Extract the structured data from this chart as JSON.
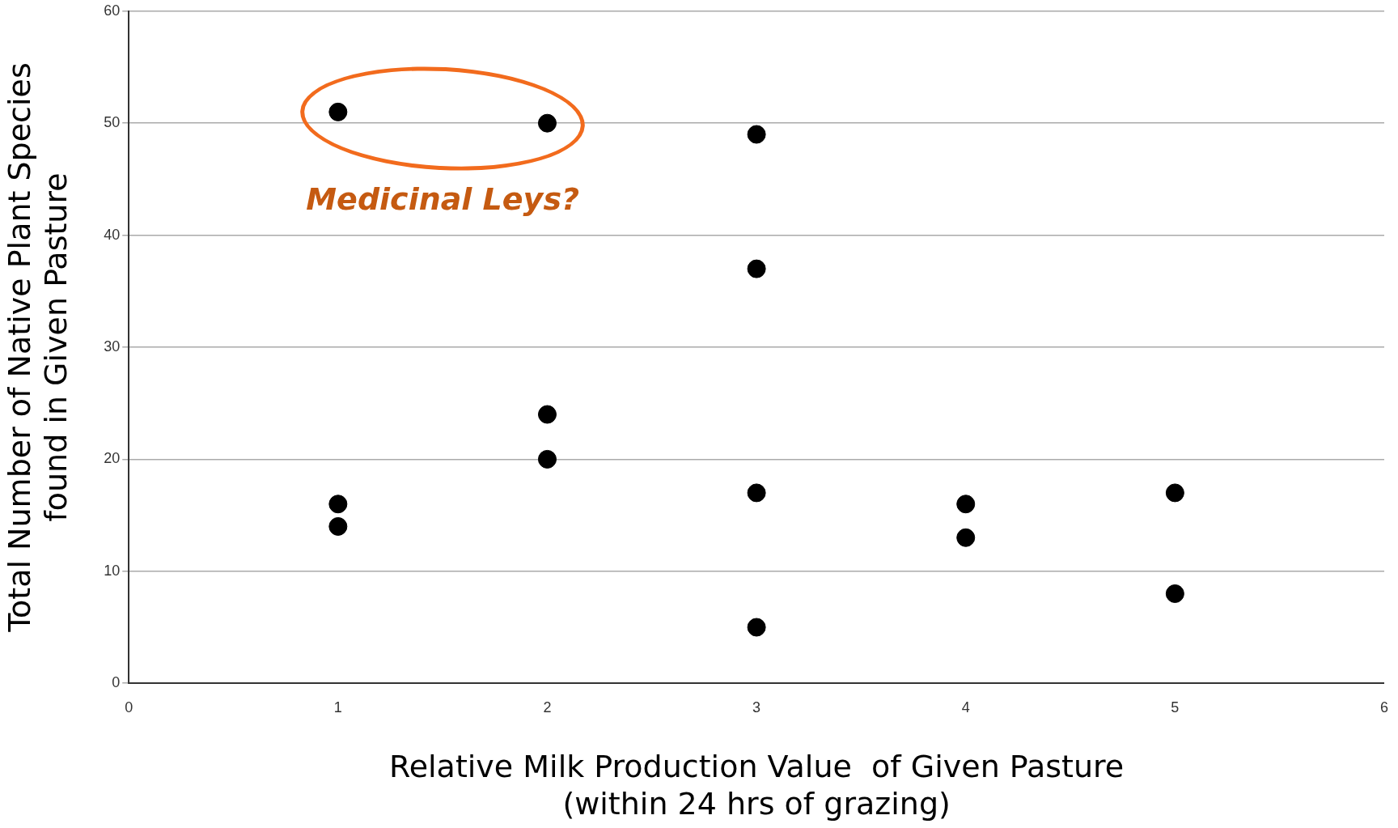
{
  "chart_data": {
    "type": "scatter",
    "xlabel": "Relative Milk Production Value  of Given Pasture\n(within 24 hrs of grazing)",
    "ylabel": "Total Number of Native Plant Species\nfound in Given Pasture",
    "x": [
      1,
      1,
      1,
      2,
      2,
      2,
      3,
      3,
      3,
      3,
      4,
      4,
      5,
      5
    ],
    "values": [
      51,
      16,
      14,
      50,
      24,
      20,
      49,
      37,
      17,
      5,
      16,
      13,
      17,
      8
    ],
    "color": "#000000",
    "marker": "circle",
    "xlim": [
      0,
      6
    ],
    "xticks": [
      0,
      1,
      2,
      3,
      4,
      5,
      6
    ],
    "ylim": [
      0,
      60
    ],
    "yticks": [
      0,
      10,
      20,
      30,
      40,
      50,
      60
    ],
    "grid": "y",
    "annotations": [
      "Medicinal Leys?"
    ]
  }
}
